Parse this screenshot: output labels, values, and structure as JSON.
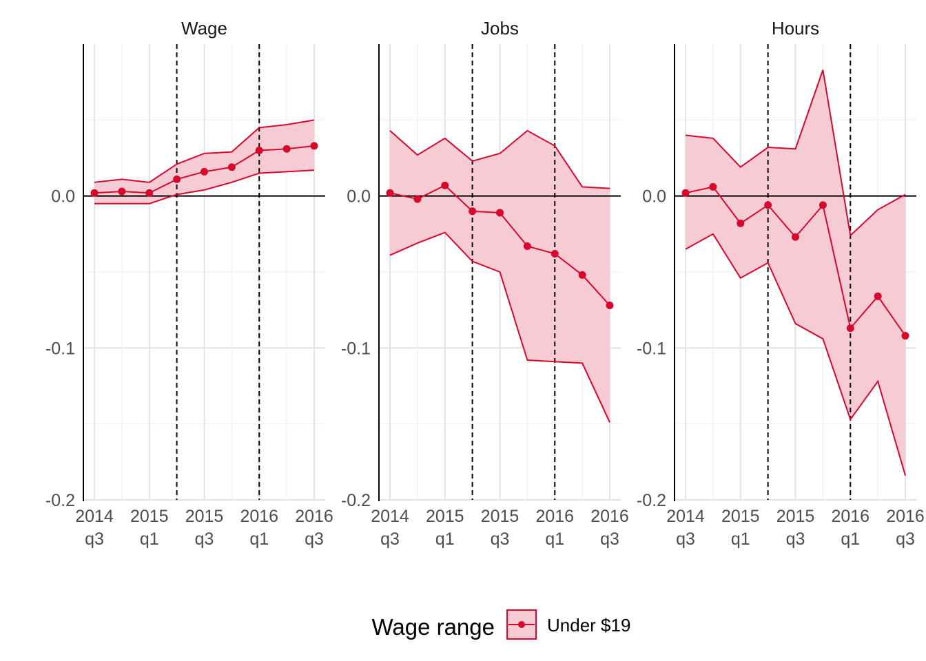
{
  "chart_data": {
    "type": "line",
    "facet_titles": [
      "Wage",
      "Jobs",
      "Hours"
    ],
    "x_ticks": [
      {
        "top": "2014",
        "bottom": "q3"
      },
      {
        "top": "2015",
        "bottom": "q1"
      },
      {
        "top": "2015",
        "bottom": "q3"
      },
      {
        "top": "2016",
        "bottom": "q1"
      },
      {
        "top": "2016",
        "bottom": "q3"
      }
    ],
    "x": [
      "2014q3",
      "2014q4",
      "2015q1",
      "2015q2",
      "2015q3",
      "2015q4",
      "2016q1",
      "2016q2",
      "2016q3"
    ],
    "y_ticks": [
      "0.0",
      "-0.1",
      "-0.2"
    ],
    "y_tick_values": [
      0.0,
      -0.1,
      -0.2
    ],
    "ylim": [
      -0.2,
      0.1
    ],
    "reference_lines": {
      "horizontal": 0,
      "vertical": [
        "2015q2",
        "2016q1"
      ]
    },
    "grid": true,
    "legend": {
      "title": "Wage range",
      "position": "bottom",
      "entries": [
        "Under $19"
      ]
    },
    "series_color": "#D7082B",
    "ribbon_color": "#F7CBD3",
    "facets": [
      {
        "title": "Wage",
        "series": {
          "name": "Under $19",
          "values": [
            0.002,
            0.003,
            0.002,
            0.011,
            0.016,
            0.019,
            0.03,
            0.031,
            0.033
          ],
          "upper": [
            0.009,
            0.011,
            0.009,
            0.021,
            0.028,
            0.029,
            0.045,
            0.047,
            0.05
          ],
          "lower": [
            -0.005,
            -0.005,
            -0.005,
            0.001,
            0.004,
            0.009,
            0.015,
            0.016,
            0.017
          ]
        }
      },
      {
        "title": "Jobs",
        "series": {
          "name": "Under $19",
          "values": [
            0.002,
            -0.002,
            0.007,
            -0.01,
            -0.011,
            -0.033,
            -0.038,
            -0.052,
            -0.072
          ],
          "upper": [
            0.043,
            0.027,
            0.038,
            0.023,
            0.028,
            0.043,
            0.033,
            0.006,
            0.005
          ],
          "lower": [
            -0.039,
            -0.031,
            -0.024,
            -0.043,
            -0.05,
            -0.108,
            -0.109,
            -0.11,
            -0.149
          ]
        }
      },
      {
        "title": "Hours",
        "series": {
          "name": "Under $19",
          "values": [
            0.002,
            0.006,
            -0.018,
            -0.006,
            -0.027,
            -0.006,
            -0.087,
            -0.066,
            -0.092
          ],
          "upper": [
            0.04,
            0.038,
            0.019,
            0.032,
            0.031,
            0.083,
            -0.026,
            -0.009,
            0.001
          ],
          "lower": [
            -0.035,
            -0.025,
            -0.054,
            -0.044,
            -0.084,
            -0.094,
            -0.147,
            -0.122,
            -0.184
          ]
        }
      }
    ]
  }
}
